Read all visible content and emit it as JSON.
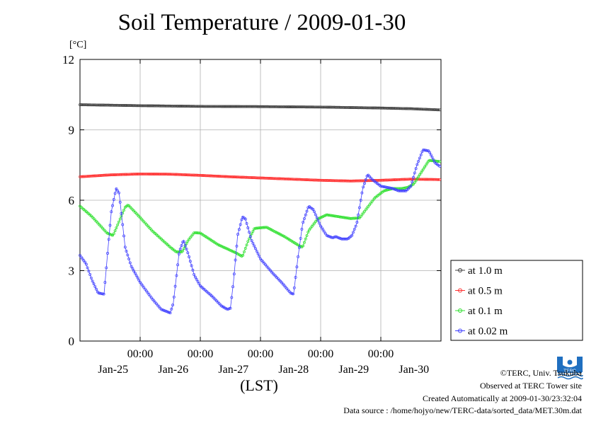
{
  "title": "Soil Temperature / 2009-01-30",
  "footer": {
    "copyright": "©TERC, Univ. Tsukuba",
    "observed": "Observed at TERC Tower site",
    "created": "Created Automatically at 2009-01-30/23:32:04",
    "source": "Data source : /home/hojyo/new/TERC-data/sorted_data/MET.30m.dat"
  },
  "logo": {
    "text": "TERC",
    "color": "#1f6fc0",
    "icon": "terc-logo-icon"
  },
  "chart_data": {
    "type": "line",
    "ylabel": "[°C]",
    "xlabel": "(LST)",
    "ylim": [
      0,
      12
    ],
    "yticks": [
      0,
      3,
      6,
      9,
      12
    ],
    "xlim": [
      0,
      6
    ],
    "xtick_positions": [
      1,
      2,
      3,
      4,
      5
    ],
    "xtick_labels": [
      "00:00",
      "00:00",
      "00:00",
      "00:00",
      "00:00"
    ],
    "date_labels": [
      {
        "x": 0.55,
        "label": "Jan-25"
      },
      {
        "x": 1.55,
        "label": "Jan-26"
      },
      {
        "x": 2.55,
        "label": "Jan-27"
      },
      {
        "x": 3.55,
        "label": "Jan-28"
      },
      {
        "x": 4.55,
        "label": "Jan-29"
      },
      {
        "x": 5.55,
        "label": "Jan-30"
      }
    ],
    "grid": true,
    "legend_position": "right",
    "series": [
      {
        "name": "at 1.0 m",
        "color": "#404040",
        "points": [
          [
            0,
            10.07
          ],
          [
            1,
            10.03
          ],
          [
            2,
            10.0
          ],
          [
            3,
            9.99
          ],
          [
            4,
            9.97
          ],
          [
            5,
            9.93
          ],
          [
            5.5,
            9.9
          ],
          [
            5.98,
            9.85
          ]
        ]
      },
      {
        "name": "at 0.5 m",
        "color": "#ff3030",
        "points": [
          [
            0,
            7.0
          ],
          [
            0.5,
            7.08
          ],
          [
            1,
            7.12
          ],
          [
            1.5,
            7.11
          ],
          [
            2,
            7.06
          ],
          [
            2.5,
            7.0
          ],
          [
            3,
            6.95
          ],
          [
            3.5,
            6.9
          ],
          [
            4,
            6.85
          ],
          [
            4.5,
            6.82
          ],
          [
            5,
            6.85
          ],
          [
            5.5,
            6.9
          ],
          [
            5.98,
            6.88
          ]
        ]
      },
      {
        "name": "at 0.1 m",
        "color": "#30e030",
        "points": [
          [
            0,
            5.75
          ],
          [
            0.2,
            5.3
          ],
          [
            0.45,
            4.6
          ],
          [
            0.55,
            4.5
          ],
          [
            0.75,
            5.7
          ],
          [
            0.8,
            5.8
          ],
          [
            0.95,
            5.4
          ],
          [
            1.2,
            4.7
          ],
          [
            1.5,
            4.0
          ],
          [
            1.6,
            3.8
          ],
          [
            1.7,
            3.8
          ],
          [
            1.8,
            4.3
          ],
          [
            1.9,
            4.62
          ],
          [
            2.0,
            4.6
          ],
          [
            2.3,
            4.1
          ],
          [
            2.6,
            3.75
          ],
          [
            2.7,
            3.6
          ],
          [
            2.8,
            4.3
          ],
          [
            2.9,
            4.8
          ],
          [
            3.1,
            4.85
          ],
          [
            3.4,
            4.45
          ],
          [
            3.65,
            4.05
          ],
          [
            3.7,
            4.0
          ],
          [
            3.8,
            4.7
          ],
          [
            3.95,
            5.2
          ],
          [
            4.1,
            5.38
          ],
          [
            4.3,
            5.3
          ],
          [
            4.5,
            5.22
          ],
          [
            4.65,
            5.25
          ],
          [
            4.75,
            5.6
          ],
          [
            4.9,
            6.1
          ],
          [
            5.05,
            6.4
          ],
          [
            5.2,
            6.5
          ],
          [
            5.35,
            6.5
          ],
          [
            5.45,
            6.55
          ],
          [
            5.55,
            6.7
          ],
          [
            5.7,
            7.3
          ],
          [
            5.8,
            7.7
          ],
          [
            5.98,
            7.65
          ]
        ]
      },
      {
        "name": "at 0.02 m",
        "color": "#4040ff",
        "points": [
          [
            0,
            3.65
          ],
          [
            0.1,
            3.3
          ],
          [
            0.2,
            2.6
          ],
          [
            0.3,
            2.05
          ],
          [
            0.4,
            2.0
          ],
          [
            0.45,
            3.5
          ],
          [
            0.52,
            5.5
          ],
          [
            0.6,
            6.5
          ],
          [
            0.65,
            6.3
          ],
          [
            0.75,
            4.0
          ],
          [
            0.85,
            3.2
          ],
          [
            1.0,
            2.5
          ],
          [
            1.2,
            1.8
          ],
          [
            1.35,
            1.35
          ],
          [
            1.45,
            1.25
          ],
          [
            1.5,
            1.2
          ],
          [
            1.55,
            1.6
          ],
          [
            1.65,
            3.8
          ],
          [
            1.72,
            4.3
          ],
          [
            1.8,
            3.7
          ],
          [
            1.9,
            2.8
          ],
          [
            2.0,
            2.35
          ],
          [
            2.2,
            1.9
          ],
          [
            2.35,
            1.5
          ],
          [
            2.45,
            1.35
          ],
          [
            2.5,
            1.4
          ],
          [
            2.55,
            2.5
          ],
          [
            2.62,
            4.5
          ],
          [
            2.7,
            5.3
          ],
          [
            2.75,
            5.2
          ],
          [
            2.85,
            4.3
          ],
          [
            3.0,
            3.5
          ],
          [
            3.2,
            2.9
          ],
          [
            3.35,
            2.5
          ],
          [
            3.5,
            2.05
          ],
          [
            3.55,
            2.0
          ],
          [
            3.62,
            3.5
          ],
          [
            3.7,
            5.0
          ],
          [
            3.8,
            5.75
          ],
          [
            3.88,
            5.6
          ],
          [
            4.0,
            4.9
          ],
          [
            4.1,
            4.5
          ],
          [
            4.2,
            4.4
          ],
          [
            4.25,
            4.45
          ],
          [
            4.35,
            4.35
          ],
          [
            4.45,
            4.35
          ],
          [
            4.52,
            4.5
          ],
          [
            4.6,
            5.0
          ],
          [
            4.7,
            6.5
          ],
          [
            4.78,
            7.1
          ],
          [
            4.85,
            6.9
          ],
          [
            5.0,
            6.6
          ],
          [
            5.1,
            6.55
          ],
          [
            5.2,
            6.5
          ],
          [
            5.3,
            6.4
          ],
          [
            5.42,
            6.4
          ],
          [
            5.5,
            6.6
          ],
          [
            5.6,
            7.5
          ],
          [
            5.7,
            8.15
          ],
          [
            5.8,
            8.1
          ],
          [
            5.9,
            7.6
          ],
          [
            5.98,
            7.45
          ]
        ]
      }
    ]
  }
}
